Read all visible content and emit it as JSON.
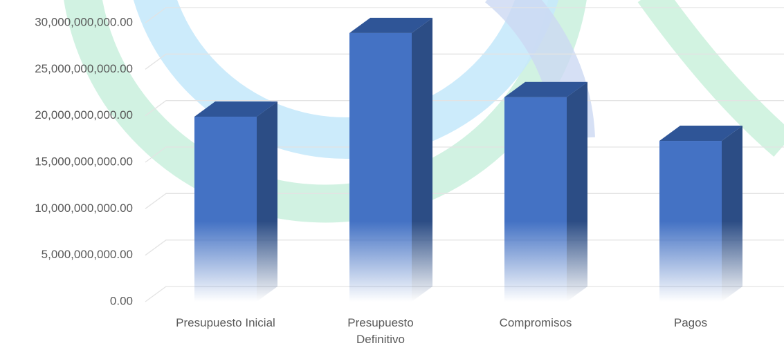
{
  "chart_data": {
    "type": "bar3d",
    "categories": [
      "Presupuesto Inicial",
      "Presupuesto Definitivo",
      "Compromisos",
      "Pagos"
    ],
    "values": [
      19900000000,
      28900000000,
      22000000000,
      17300000000
    ],
    "color": "#4472c4",
    "ylim": [
      0,
      30000000000
    ],
    "yticks": [
      {
        "value": 0,
        "label": "0.00"
      },
      {
        "value": 5000000000,
        "label": "5,000,000,000.00"
      },
      {
        "value": 10000000000,
        "label": "10,000,000,000.00"
      },
      {
        "value": 15000000000,
        "label": "15,000,000,000.00"
      },
      {
        "value": 20000000000,
        "label": "20,000,000,000.00"
      },
      {
        "value": 25000000000,
        "label": "25,000,000,000.00"
      },
      {
        "value": 30000000000,
        "label": "30,000,000,000.00"
      }
    ],
    "grid": true
  }
}
